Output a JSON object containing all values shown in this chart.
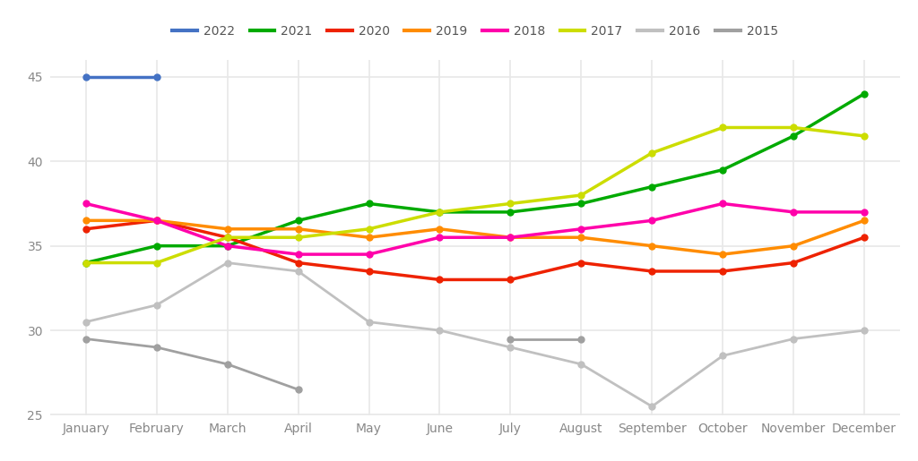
{
  "months": [
    "January",
    "February",
    "March",
    "April",
    "May",
    "June",
    "July",
    "August",
    "September",
    "October",
    "November",
    "December"
  ],
  "series": {
    "2022": {
      "color": "#4472C4",
      "linewidth": 2.5,
      "values": [
        45,
        45,
        null,
        null,
        null,
        null,
        null,
        null,
        null,
        null,
        null,
        null
      ]
    },
    "2021": {
      "color": "#00AA00",
      "linewidth": 2.5,
      "values": [
        34.0,
        35.0,
        35.0,
        36.5,
        37.5,
        37.0,
        37.0,
        37.5,
        38.5,
        39.5,
        41.5,
        44.0
      ]
    },
    "2020": {
      "color": "#EE2200",
      "linewidth": 2.5,
      "values": [
        36.0,
        36.5,
        35.5,
        34.0,
        33.5,
        33.0,
        33.0,
        34.0,
        33.5,
        33.5,
        34.0,
        35.5
      ]
    },
    "2019": {
      "color": "#FF8C00",
      "linewidth": 2.5,
      "values": [
        36.5,
        36.5,
        36.0,
        36.0,
        35.5,
        36.0,
        35.5,
        35.5,
        35.0,
        34.5,
        35.0,
        36.5
      ]
    },
    "2018": {
      "color": "#FF00AA",
      "linewidth": 2.5,
      "values": [
        37.5,
        36.5,
        35.0,
        34.5,
        34.5,
        35.5,
        35.5,
        36.0,
        36.5,
        37.5,
        37.0,
        37.0
      ]
    },
    "2017": {
      "color": "#CCDD00",
      "linewidth": 2.5,
      "values": [
        34.0,
        34.0,
        35.5,
        35.5,
        36.0,
        37.0,
        37.5,
        38.0,
        40.5,
        42.0,
        42.0,
        41.5
      ]
    },
    "2016": {
      "color": "#C0C0C0",
      "linewidth": 2.0,
      "values": [
        30.5,
        31.5,
        34.0,
        33.5,
        30.5,
        30.0,
        29.0,
        28.0,
        25.5,
        28.5,
        29.5,
        30.0
      ]
    },
    "2015": {
      "color": "#A0A0A0",
      "linewidth": 2.0,
      "values": [
        29.5,
        29.0,
        28.0,
        26.5,
        null,
        null,
        29.5,
        29.5,
        null,
        null,
        null,
        null
      ]
    }
  },
  "ylim": [
    25,
    46
  ],
  "yticks": [
    25,
    30,
    35,
    40,
    45
  ],
  "background_color": "#ffffff",
  "grid_color": "#E8E8E8",
  "legend_order": [
    "2022",
    "2021",
    "2020",
    "2019",
    "2018",
    "2017",
    "2016",
    "2015"
  ]
}
